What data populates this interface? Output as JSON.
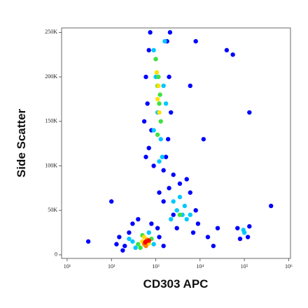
{
  "chart_data": {
    "type": "scatter",
    "x_label": "CD303 APC",
    "y_label": "Side Scatter",
    "xscale": "log",
    "xlim": [
      7.5,
      1100000
    ],
    "ylim": [
      -4000,
      255000
    ],
    "xticks": [
      {
        "value": 10,
        "label": "10¹"
      },
      {
        "value": 100,
        "label": "10²"
      },
      {
        "value": 1000,
        "label": "10³"
      },
      {
        "value": 10000,
        "label": "10⁴"
      },
      {
        "value": 100000,
        "label": "10⁵"
      },
      {
        "value": 1000000,
        "label": "10⁶"
      }
    ],
    "yticks": [
      0,
      {
        "value": 50000,
        "label": "50K"
      },
      {
        "value": 100000,
        "label": "100K"
      },
      {
        "value": 150000,
        "label": "150K"
      },
      {
        "value": 200000,
        "label": "200K"
      },
      {
        "value": 250000,
        "label": "250K"
      }
    ],
    "series": [
      {
        "color": "#0000ff",
        "x": [
          600,
          700,
          650,
          750,
          800,
          700,
          1800,
          2000,
          2200,
          1900,
          1700,
          900,
          1500,
          2500,
          550,
          2100,
          600,
          150,
          200,
          180,
          250,
          300,
          1200,
          1500,
          1100,
          400,
          800,
          130,
          1500,
          2000,
          3500,
          6000,
          8000,
          9000,
          7000,
          3000,
          2500,
          5000,
          1200,
          70000,
          120000,
          80000,
          130000,
          25000,
          15000,
          400000,
          130000,
          40000,
          55000,
          8000,
          6000,
          30,
          100,
          20000,
          12000
        ],
        "y": [
          200000,
          230000,
          170000,
          250000,
          140000,
          120000,
          240000,
          200000,
          160000,
          130000,
          110000,
          100000,
          95000,
          90000,
          150000,
          250000,
          110000,
          20000,
          10000,
          5000,
          25000,
          35000,
          20000,
          10000,
          30000,
          40000,
          35000,
          12000,
          60000,
          75000,
          80000,
          70000,
          50000,
          35000,
          25000,
          30000,
          45000,
          85000,
          70000,
          30000,
          20000,
          18000,
          32000,
          30000,
          20000,
          55000,
          160000,
          230000,
          225000,
          240000,
          190000,
          15000,
          60000,
          10000,
          130000
        ]
      },
      {
        "color": "#00c8ff",
        "x": [
          900,
          1000,
          1100,
          1300,
          1400,
          1500,
          1600,
          900,
          1200,
          1700,
          300,
          350,
          700,
          900,
          250,
          2500,
          3000,
          4000,
          5000,
          3500,
          4500,
          2200,
          6000,
          100000,
          95000
        ],
        "y": [
          230000,
          200000,
          160000,
          130000,
          110000,
          190000,
          240000,
          140000,
          105000,
          170000,
          15000,
          8000,
          25000,
          12000,
          18000,
          60000,
          50000,
          45000,
          40000,
          65000,
          55000,
          40000,
          45000,
          25000,
          28000
        ]
      },
      {
        "color": "#40e040",
        "x": [
          1000,
          1100,
          1200,
          1300,
          1150,
          1250,
          1100,
          400,
          500,
          800,
          450,
          3500
        ],
        "y": [
          220000,
          190000,
          170000,
          150000,
          200000,
          180000,
          135000,
          12000,
          22000,
          18000,
          8000,
          45000
        ]
      },
      {
        "color": "#ffe000",
        "x": [
          1100,
          1200,
          1150,
          1050,
          500,
          700,
          550
        ],
        "y": [
          175000,
          160000,
          190000,
          205000,
          15000,
          13000,
          20000
        ]
      },
      {
        "color": "#ff8000",
        "x": [
          550,
          650,
          600
        ],
        "y": [
          12000,
          17000,
          10000
        ]
      },
      {
        "color": "#ff0000",
        "x": [
          600,
          700,
          580
        ],
        "y": [
          15000,
          16000,
          14000
        ]
      }
    ]
  }
}
